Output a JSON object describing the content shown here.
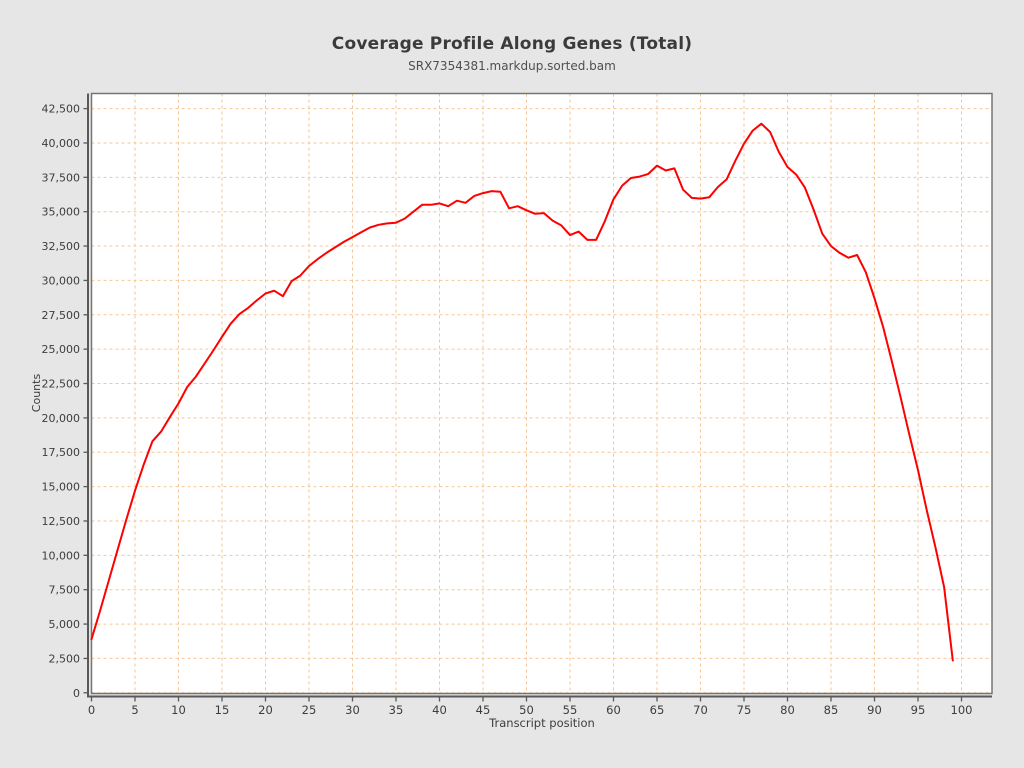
{
  "chart": {
    "title": "Coverage Profile Along Genes (Total)",
    "subtitle": "SRX7354381.markdup.sorted.bam",
    "xlabel": "Transcript position",
    "ylabel": "Counts"
  },
  "colors": {
    "line": "#ff0000",
    "grid": "#f6c694",
    "outer_background": "#e6e6e6",
    "plot_background": "#ffffff",
    "plot_border": "#757575",
    "axis": "#595959",
    "tick_text": "#3d3d3d"
  },
  "chart_data": {
    "type": "line",
    "title": "Coverage Profile Along Genes (Total)",
    "subtitle": "SRX7354381.markdup.sorted.bam",
    "xlabel": "Transcript position",
    "ylabel": "Counts",
    "grid": true,
    "legend_position": "none",
    "xlim": [
      0,
      103.5
    ],
    "ylim": [
      0,
      43600
    ],
    "x_ticks": {
      "values": [
        0,
        5,
        10,
        15,
        20,
        25,
        30,
        35,
        40,
        45,
        50,
        55,
        60,
        65,
        70,
        75,
        80,
        85,
        90,
        95,
        100
      ],
      "labels": [
        "0",
        "5",
        "10",
        "15",
        "20",
        "25",
        "30",
        "35",
        "40",
        "45",
        "50",
        "55",
        "60",
        "65",
        "70",
        "75",
        "80",
        "85",
        "90",
        "95",
        "100"
      ]
    },
    "y_ticks": {
      "values": [
        0,
        2500,
        5000,
        7500,
        10000,
        12500,
        15000,
        17500,
        20000,
        22500,
        25000,
        27500,
        30000,
        32500,
        35000,
        37500,
        40000,
        42500
      ],
      "labels": [
        "0",
        "2,500",
        "5,000",
        "7,500",
        "10,000",
        "12,500",
        "15,000",
        "17,500",
        "20,000",
        "22,500",
        "25,000",
        "27,500",
        "30,000",
        "32,500",
        "35,000",
        "37,500",
        "40,000",
        "42,500"
      ]
    },
    "series": [
      {
        "name": "SRX7354381.markdup.sorted.bam",
        "color": "#ff0000",
        "x": [
          0,
          1,
          2,
          3,
          4,
          5,
          6,
          7,
          8,
          9,
          10,
          11,
          12,
          13,
          14,
          15,
          16,
          17,
          18,
          19,
          20,
          21,
          22,
          23,
          24,
          25,
          26,
          27,
          28,
          29,
          30,
          31,
          32,
          33,
          34,
          35,
          36,
          37,
          38,
          39,
          40,
          41,
          42,
          43,
          44,
          45,
          46,
          47,
          48,
          49,
          50,
          51,
          52,
          53,
          54,
          55,
          56,
          57,
          58,
          59,
          60,
          61,
          62,
          63,
          64,
          65,
          66,
          67,
          68,
          69,
          70,
          71,
          72,
          73,
          74,
          75,
          76,
          77,
          78,
          79,
          80,
          81,
          82,
          83,
          84,
          85,
          86,
          87,
          88,
          89,
          90,
          91,
          92,
          93,
          94,
          95,
          96,
          97,
          98,
          99
        ],
        "values": [
          3900,
          6000,
          8200,
          10400,
          12600,
          14700,
          16600,
          18300,
          19000,
          20050,
          21050,
          22250,
          23000,
          23950,
          24900,
          25900,
          26850,
          27550,
          28000,
          28550,
          29050,
          29250,
          28850,
          29950,
          30350,
          31050,
          31550,
          32000,
          32400,
          32800,
          33150,
          33500,
          33850,
          34050,
          34150,
          34200,
          34500,
          35000,
          35500,
          35500,
          35600,
          35400,
          35800,
          35650,
          36150,
          36350,
          36500,
          36450,
          35250,
          35400,
          35100,
          34850,
          34900,
          34350,
          34000,
          33300,
          33550,
          32950,
          32950,
          34300,
          35900,
          36900,
          37450,
          37550,
          37750,
          38350,
          38000,
          38150,
          36600,
          36000,
          35950,
          36050,
          36800,
          37350,
          38700,
          39950,
          40900,
          41400,
          40800,
          39350,
          38250,
          37700,
          36750,
          35150,
          33400,
          32500,
          32000,
          31650,
          31850,
          30600,
          28700,
          26600,
          24100,
          21500,
          18800,
          16200,
          13300,
          10600,
          7700,
          2350
        ]
      }
    ]
  }
}
